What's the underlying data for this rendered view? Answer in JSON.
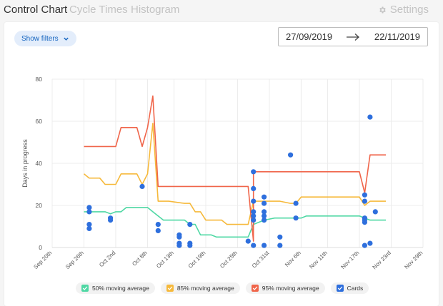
{
  "tabs": [
    {
      "label": "Control Chart",
      "active": true
    },
    {
      "label": "Cycle Times",
      "active": false
    },
    {
      "label": "Histogram",
      "active": false
    }
  ],
  "settings": {
    "label": "Settings",
    "icon": "gear-icon"
  },
  "filters": {
    "label": "Show filters",
    "icon": "chevron-down-icon"
  },
  "date_range": {
    "start": "27/09/2019",
    "end": "22/11/2019",
    "icon": "arrow-right-icon"
  },
  "legend": [
    {
      "label": "50% moving average",
      "color": "#4fd8a4"
    },
    {
      "label": "85% moving average",
      "color": "#f6b93b"
    },
    {
      "label": "95% moving average",
      "color": "#f0654a"
    },
    {
      "label": "Cards",
      "color": "#2e6fdd"
    }
  ],
  "chart_data": {
    "type": "scatter",
    "ylabel": "Days in progress",
    "ylim": [
      0,
      80
    ],
    "yticks": [
      0,
      20,
      40,
      60,
      80
    ],
    "xlabel": "",
    "xticks": [
      "Sep 20th",
      "Sep 26th",
      "Oct 2nd",
      "Oct 8th",
      "Oct 13th",
      "Oct 19th",
      "Oct 25th",
      "Oct 31st",
      "Nov 6th",
      "Nov 11th",
      "Nov 17th",
      "Nov 23rd",
      "Nov 29th"
    ],
    "xlim": [
      0,
      70
    ],
    "tick_days": [
      0,
      6,
      12,
      18,
      23,
      29,
      35,
      41,
      47,
      52,
      58,
      64,
      70
    ],
    "grid": true,
    "lines": [
      {
        "name": "50% moving average",
        "color": "#4fd8a4",
        "points": [
          [
            6,
            17
          ],
          [
            8,
            17
          ],
          [
            10,
            17
          ],
          [
            11,
            16
          ],
          [
            12,
            17
          ],
          [
            13,
            17
          ],
          [
            14,
            19
          ],
          [
            16,
            19
          ],
          [
            18,
            19
          ],
          [
            19,
            17
          ],
          [
            20,
            15
          ],
          [
            21,
            13
          ],
          [
            23,
            13
          ],
          [
            25,
            13
          ],
          [
            26,
            11
          ],
          [
            27,
            11
          ],
          [
            28,
            6
          ],
          [
            30,
            6
          ],
          [
            31,
            5
          ],
          [
            33,
            5
          ],
          [
            36,
            5
          ],
          [
            37,
            5
          ],
          [
            38,
            11
          ],
          [
            40,
            13
          ],
          [
            42,
            14
          ],
          [
            44,
            14
          ],
          [
            46,
            14
          ],
          [
            47,
            14
          ],
          [
            48,
            15
          ],
          [
            50,
            15
          ],
          [
            52,
            15
          ],
          [
            54,
            15
          ],
          [
            56,
            15
          ],
          [
            58,
            15
          ],
          [
            60,
            13
          ],
          [
            62,
            13
          ],
          [
            63,
            13
          ]
        ]
      },
      {
        "name": "85% moving average",
        "color": "#f6b93b",
        "points": [
          [
            6,
            35
          ],
          [
            7,
            33
          ],
          [
            9,
            33
          ],
          [
            10,
            30
          ],
          [
            12,
            30
          ],
          [
            13,
            35
          ],
          [
            15,
            35
          ],
          [
            16,
            35
          ],
          [
            17,
            30
          ],
          [
            18,
            35
          ],
          [
            19,
            59
          ],
          [
            20,
            22
          ],
          [
            22,
            22
          ],
          [
            25,
            21
          ],
          [
            26,
            21
          ],
          [
            27,
            17
          ],
          [
            28,
            17
          ],
          [
            29,
            13
          ],
          [
            32,
            13
          ],
          [
            33,
            11
          ],
          [
            37,
            11
          ],
          [
            38,
            22
          ],
          [
            40,
            22
          ],
          [
            43,
            22
          ],
          [
            45,
            21
          ],
          [
            46,
            21
          ],
          [
            47,
            24
          ],
          [
            52,
            24
          ],
          [
            58,
            24
          ],
          [
            59,
            20
          ],
          [
            60,
            22
          ],
          [
            62,
            22
          ],
          [
            63,
            22
          ]
        ]
      },
      {
        "name": "95% moving average",
        "color": "#f0654a",
        "points": [
          [
            6,
            48
          ],
          [
            8,
            48
          ],
          [
            10,
            48
          ],
          [
            12,
            48
          ],
          [
            13,
            57
          ],
          [
            16,
            57
          ],
          [
            17,
            48
          ],
          [
            18,
            57
          ],
          [
            19,
            72
          ],
          [
            20,
            29
          ],
          [
            22,
            29
          ],
          [
            25,
            29
          ],
          [
            29,
            29
          ],
          [
            32,
            29
          ],
          [
            36,
            29
          ],
          [
            37,
            29
          ],
          [
            38,
            3
          ],
          [
            38,
            36
          ],
          [
            44,
            36
          ],
          [
            50,
            36
          ],
          [
            52,
            36
          ],
          [
            58,
            36
          ],
          [
            59,
            26
          ],
          [
            60,
            44
          ],
          [
            62,
            44
          ],
          [
            63,
            44
          ]
        ]
      }
    ],
    "cards": [
      [
        7,
        19
      ],
      [
        7,
        17
      ],
      [
        7,
        11
      ],
      [
        7,
        9
      ],
      [
        11,
        14
      ],
      [
        11,
        13
      ],
      [
        17,
        29
      ],
      [
        20,
        11
      ],
      [
        20,
        8
      ],
      [
        24,
        6
      ],
      [
        24,
        5
      ],
      [
        24,
        2
      ],
      [
        24,
        1
      ],
      [
        26,
        11
      ],
      [
        26,
        2
      ],
      [
        26,
        1
      ],
      [
        37,
        3
      ],
      [
        38,
        36
      ],
      [
        38,
        28
      ],
      [
        38,
        22
      ],
      [
        38,
        17
      ],
      [
        38,
        15
      ],
      [
        38,
        13
      ],
      [
        38,
        1
      ],
      [
        40,
        24
      ],
      [
        40,
        21
      ],
      [
        40,
        17
      ],
      [
        40,
        15
      ],
      [
        40,
        13
      ],
      [
        40,
        1
      ],
      [
        43,
        5
      ],
      [
        43,
        1
      ],
      [
        45,
        44
      ],
      [
        46,
        21
      ],
      [
        46,
        14
      ],
      [
        59,
        25
      ],
      [
        59,
        22
      ],
      [
        59,
        14
      ],
      [
        59,
        13
      ],
      [
        59,
        12
      ],
      [
        59,
        1
      ],
      [
        60,
        62
      ],
      [
        60,
        2
      ],
      [
        61,
        17
      ]
    ]
  }
}
